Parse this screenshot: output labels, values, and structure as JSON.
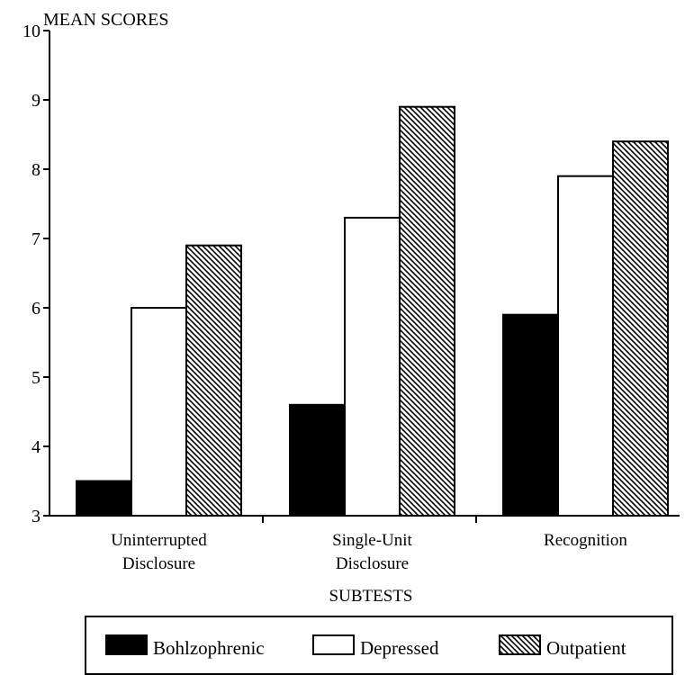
{
  "chart_data": {
    "type": "bar",
    "ylabel": "MEAN SCORES",
    "xlabel": "SUBTESTS",
    "ylim": [
      3,
      10
    ],
    "yticks": [
      3,
      4,
      5,
      6,
      7,
      8,
      9,
      10
    ],
    "categories": [
      [
        "Uninterrupted",
        "Disclosure"
      ],
      [
        "Single-Unit",
        "Disclosure"
      ],
      [
        "Recognition"
      ]
    ],
    "series": [
      {
        "name": "Bohlzophrenic",
        "fill": "solid-black",
        "values": [
          3.5,
          4.6,
          5.9
        ]
      },
      {
        "name": "Depressed",
        "fill": "white",
        "values": [
          6.0,
          7.3,
          7.9
        ]
      },
      {
        "name": "Outpatient",
        "fill": "diagonal-hatch",
        "values": [
          6.9,
          8.9,
          8.4
        ]
      }
    ],
    "legend_position": "bottom",
    "grid": false
  }
}
